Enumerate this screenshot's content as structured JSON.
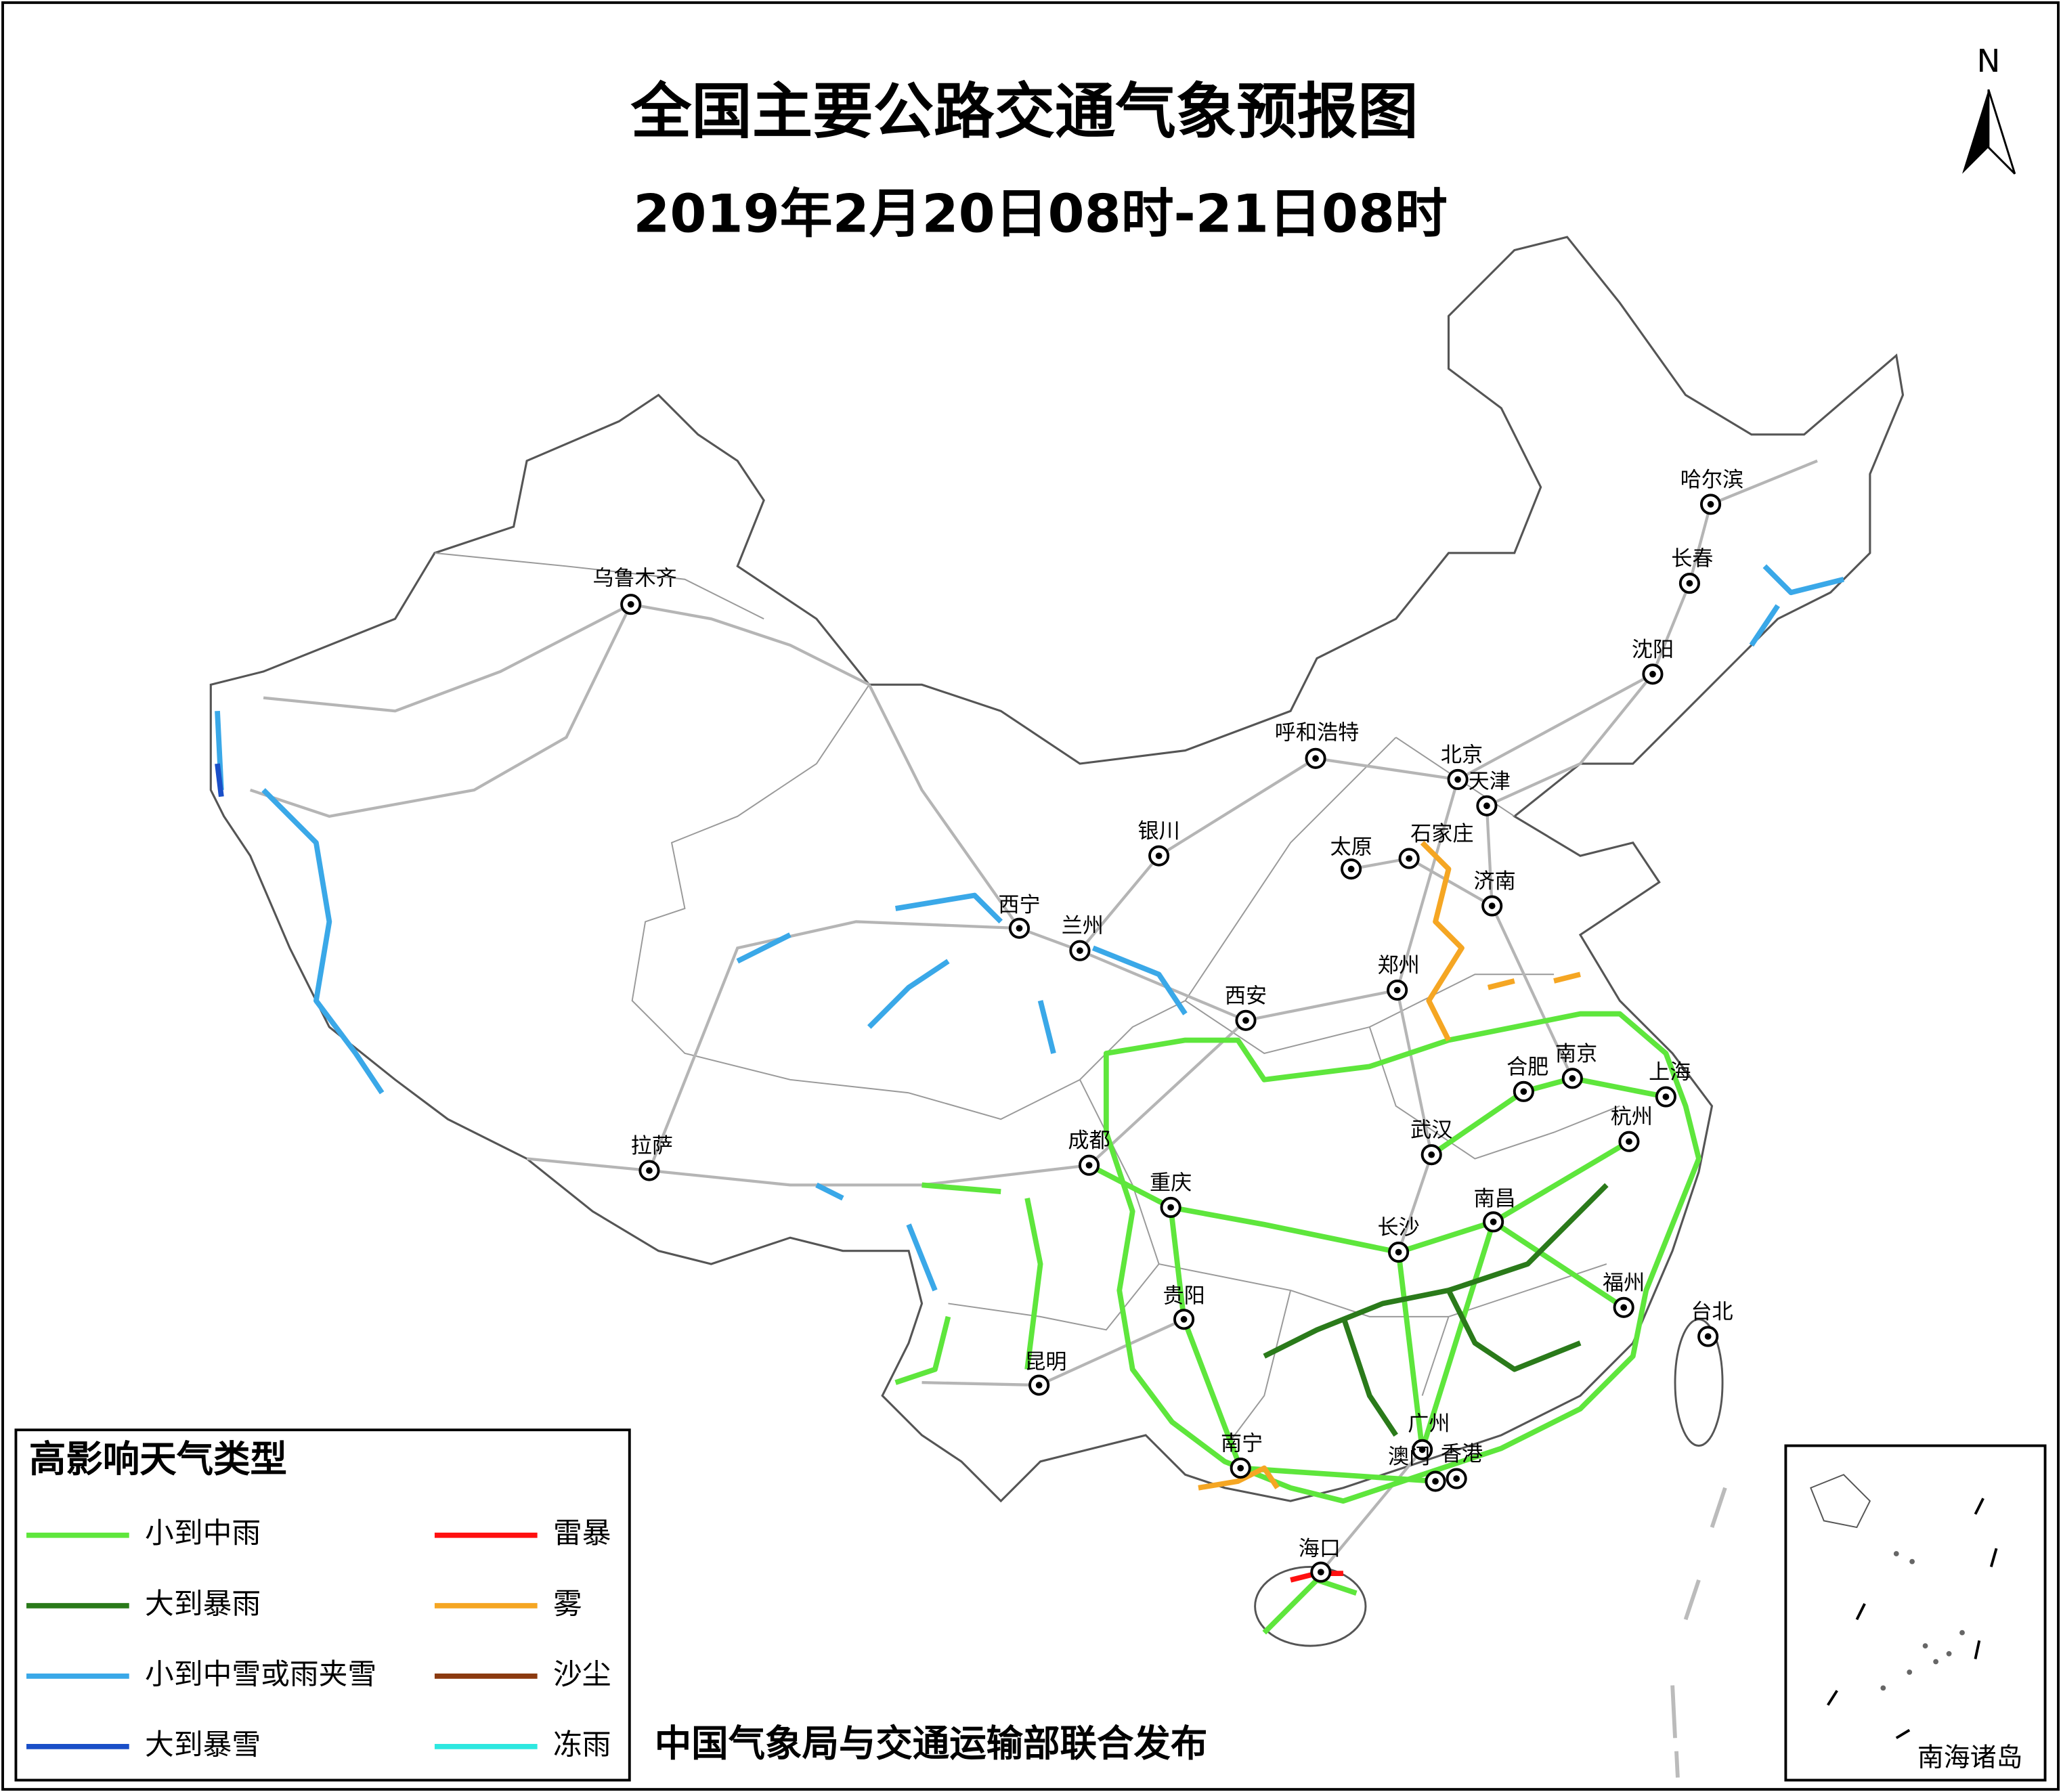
{
  "title": "全国主要公路交通气象预报图",
  "subtitle": "2019年2月20日08时-21日08时",
  "north": "N",
  "cities": [
    "乌鲁木齐",
    "哈尔滨",
    "长春",
    "沈阳",
    "呼和浩特",
    "北京",
    "天津",
    "银川",
    "太原",
    "石家庄",
    "济南",
    "西宁",
    "兰州",
    "郑州",
    "西安",
    "合肥",
    "南京",
    "上海",
    "杭州",
    "武汉",
    "成都",
    "拉萨",
    "重庆",
    "南昌",
    "长沙",
    "贵阳",
    "福州",
    "台北",
    "昆明",
    "广州",
    "南宁",
    "澳门",
    "香港",
    "海口"
  ],
  "legend": {
    "title": "高影响天气类型",
    "items": [
      {
        "label": "小到中雨",
        "color": "#5ee63c"
      },
      {
        "label": "大到暴雨",
        "color": "#2a7a1a"
      },
      {
        "label": "小到中雪或雨夹雪",
        "color": "#3aa8e8"
      },
      {
        "label": "大到暴雪",
        "color": "#1a4fc8"
      },
      {
        "label": "雷暴",
        "color": "#ff1010"
      },
      {
        "label": "雾",
        "color": "#f5a623"
      },
      {
        "label": "沙尘",
        "color": "#8b3a0f"
      },
      {
        "label": "冻雨",
        "color": "#2ee8e0"
      }
    ]
  },
  "publisher": "中国气象局与交通运输部联合发布",
  "inset_label": "南海诸岛"
}
